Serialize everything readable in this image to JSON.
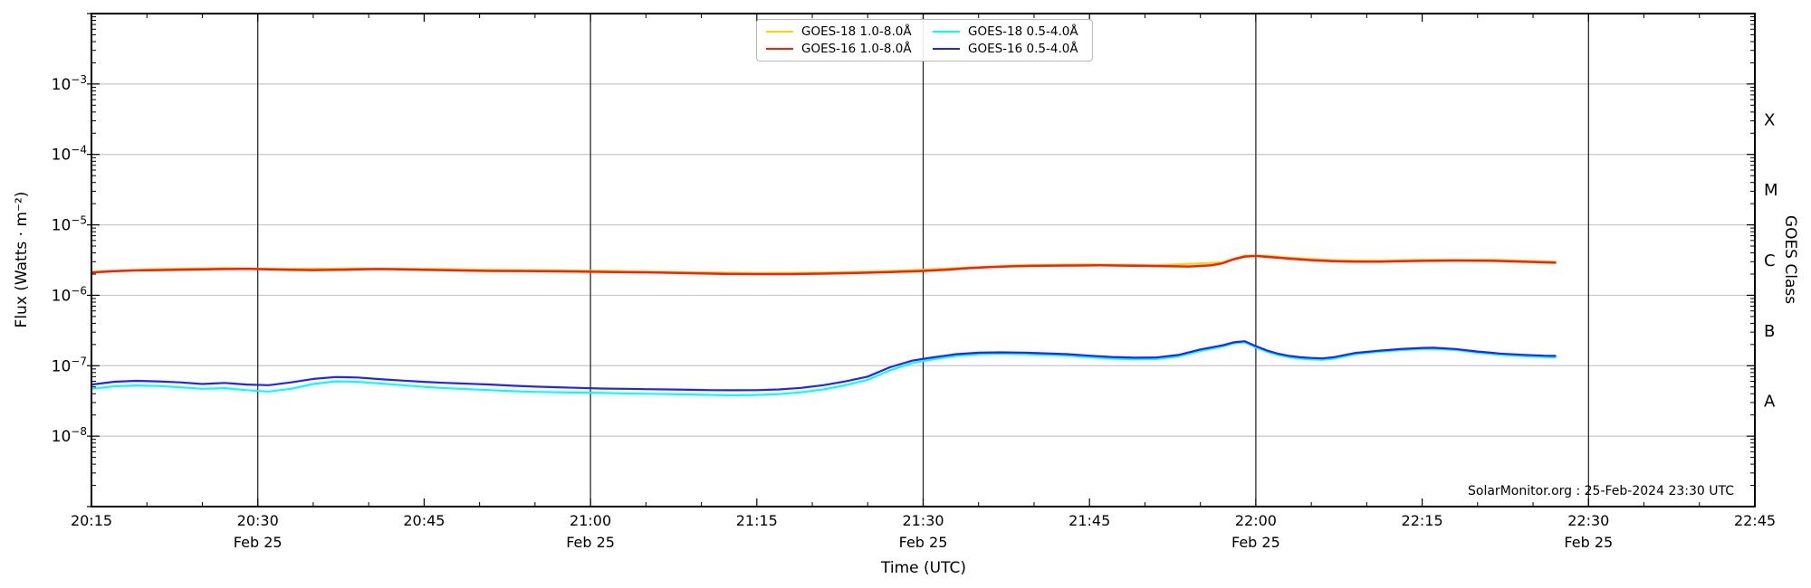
{
  "watermark": "SolarMonitor.org : 25-Feb-2024 23:30 UTC",
  "axes": {
    "x_title": "Time (UTC)",
    "y_title": "Flux (Watts · m⁻²)",
    "y2_title": "GOES Class"
  },
  "colors": {
    "gridline": "#c9c9c9",
    "vline": "#1a1a1a",
    "spine": "#000000",
    "text": "#000000"
  },
  "chart_data": {
    "type": "line",
    "title": "",
    "x_axis": {
      "total_minutes": 150,
      "start_label": "20:15",
      "end_label": "22:45",
      "tick_interval_min": 15,
      "minor_tick_min": 5,
      "tick_labels": [
        "20:15",
        "20:30",
        "20:45",
        "21:00",
        "21:15",
        "21:30",
        "21:45",
        "22:00",
        "22:15",
        "22:30",
        "22:45"
      ],
      "date_label": "Feb 25",
      "date_tick_minutes": [
        15,
        45,
        75,
        105,
        135
      ]
    },
    "y_axis": {
      "scale": "log",
      "max_exp": -2,
      "min_exp": -9,
      "labeled_exps": [
        -3,
        -4,
        -5,
        -6,
        -7,
        -8
      ],
      "grid": true
    },
    "goes_classes": [
      {
        "label": "X",
        "center_exp": -3.5
      },
      {
        "label": "M",
        "center_exp": -4.5
      },
      {
        "label": "C",
        "center_exp": -5.5
      },
      {
        "label": "B",
        "center_exp": -6.5
      },
      {
        "label": "A",
        "center_exp": -7.5
      }
    ],
    "legend_order": [
      0,
      2,
      1,
      3
    ],
    "series": [
      {
        "id": "goes18-long",
        "name": "GOES-18 1.0-8.0Å",
        "color": "#FFD400",
        "width": 2.0,
        "flux_scale": 1e-06,
        "points": [
          [
            0,
            2.16
          ],
          [
            6,
            2.35
          ],
          [
            12,
            2.43
          ],
          [
            18,
            2.37
          ],
          [
            24,
            2.4
          ],
          [
            30,
            2.37
          ],
          [
            36,
            2.29
          ],
          [
            42,
            2.26
          ],
          [
            48,
            2.19
          ],
          [
            54,
            2.12
          ],
          [
            60,
            2.06
          ],
          [
            66,
            2.09
          ],
          [
            72,
            2.2
          ],
          [
            78,
            2.43
          ],
          [
            84,
            2.68
          ],
          [
            90,
            2.74
          ],
          [
            96,
            2.67
          ],
          [
            102,
            2.94
          ],
          [
            104,
            3.66
          ],
          [
            106,
            3.63
          ],
          [
            108,
            3.42
          ],
          [
            112,
            3.14
          ],
          [
            116,
            3.09
          ],
          [
            120,
            3.17
          ],
          [
            126,
            3.19
          ],
          [
            132,
            2.99
          ]
        ]
      },
      {
        "id": "goes16-long",
        "name": "GOES-16 1.0-8.0Å",
        "color": "#FF1E00",
        "width": 2.5,
        "flux_scale": 1e-06,
        "points": [
          [
            0,
            2.1
          ],
          [
            2,
            2.2
          ],
          [
            4,
            2.26
          ],
          [
            6,
            2.28
          ],
          [
            8,
            2.31
          ],
          [
            10,
            2.33
          ],
          [
            12,
            2.36
          ],
          [
            14,
            2.38
          ],
          [
            16,
            2.34
          ],
          [
            18,
            2.3
          ],
          [
            20,
            2.28
          ],
          [
            22,
            2.3
          ],
          [
            24,
            2.33
          ],
          [
            26,
            2.36
          ],
          [
            28,
            2.34
          ],
          [
            30,
            2.3
          ],
          [
            33,
            2.26
          ],
          [
            36,
            2.22
          ],
          [
            39,
            2.21
          ],
          [
            42,
            2.19
          ],
          [
            45,
            2.16
          ],
          [
            48,
            2.13
          ],
          [
            51,
            2.1
          ],
          [
            54,
            2.06
          ],
          [
            57,
            2.02
          ],
          [
            60,
            2.0
          ],
          [
            63,
            2.0
          ],
          [
            66,
            2.03
          ],
          [
            69,
            2.07
          ],
          [
            72,
            2.14
          ],
          [
            75,
            2.22
          ],
          [
            77,
            2.3
          ],
          [
            79,
            2.42
          ],
          [
            81,
            2.52
          ],
          [
            83,
            2.58
          ],
          [
            85,
            2.62
          ],
          [
            87,
            2.64
          ],
          [
            89,
            2.65
          ],
          [
            91,
            2.66
          ],
          [
            93,
            2.64
          ],
          [
            95,
            2.62
          ],
          [
            97,
            2.59
          ],
          [
            99,
            2.56
          ],
          [
            101,
            2.66
          ],
          [
            102,
            2.85
          ],
          [
            103,
            3.25
          ],
          [
            104,
            3.55
          ],
          [
            105,
            3.62
          ],
          [
            106,
            3.52
          ],
          [
            107,
            3.42
          ],
          [
            108,
            3.32
          ],
          [
            110,
            3.15
          ],
          [
            112,
            3.05
          ],
          [
            114,
            3.0
          ],
          [
            116,
            3.0
          ],
          [
            118,
            3.04
          ],
          [
            120,
            3.08
          ],
          [
            123,
            3.12
          ],
          [
            126,
            3.1
          ],
          [
            129,
            3.0
          ],
          [
            132,
            2.9
          ]
        ]
      },
      {
        "id": "goes18-short",
        "name": "GOES-18 0.5-4.0Å",
        "color": "#00FFFF",
        "width": 2.2,
        "flux_scale": 1e-08,
        "points": [
          [
            0,
            4.7
          ],
          [
            2,
            5.1
          ],
          [
            4,
            5.25
          ],
          [
            6,
            5.15
          ],
          [
            8,
            4.95
          ],
          [
            10,
            4.7
          ],
          [
            12,
            4.8
          ],
          [
            14,
            4.5
          ],
          [
            16,
            4.3
          ],
          [
            18,
            4.7
          ],
          [
            20,
            5.5
          ],
          [
            22,
            6.0
          ],
          [
            24,
            5.9
          ],
          [
            26,
            5.6
          ],
          [
            28,
            5.3
          ],
          [
            30,
            5.0
          ],
          [
            32,
            4.8
          ],
          [
            34,
            4.65
          ],
          [
            36,
            4.5
          ],
          [
            38,
            4.35
          ],
          [
            40,
            4.25
          ],
          [
            42,
            4.2
          ],
          [
            44,
            4.15
          ],
          [
            46,
            4.1
          ],
          [
            48,
            4.05
          ],
          [
            50,
            4.0
          ],
          [
            52,
            3.95
          ],
          [
            54,
            3.9
          ],
          [
            56,
            3.85
          ],
          [
            58,
            3.8
          ],
          [
            60,
            3.85
          ],
          [
            62,
            3.95
          ],
          [
            64,
            4.2
          ],
          [
            66,
            4.6
          ],
          [
            68,
            5.3
          ],
          [
            70,
            6.3
          ],
          [
            72,
            8.6
          ],
          [
            74,
            10.9
          ],
          [
            75,
            11.7
          ],
          [
            76,
            12.4
          ],
          [
            77,
            13.1
          ],
          [
            78,
            13.8
          ],
          [
            80,
            14.5
          ],
          [
            82,
            14.8
          ],
          [
            84,
            14.6
          ],
          [
            86,
            14.3
          ],
          [
            88,
            13.9
          ],
          [
            90,
            13.2
          ],
          [
            92,
            12.6
          ],
          [
            94,
            12.3
          ],
          [
            96,
            12.4
          ],
          [
            98,
            13.5
          ],
          [
            100,
            16.2
          ],
          [
            102,
            18.7
          ],
          [
            103,
            20.7
          ],
          [
            104,
            21.5
          ],
          [
            105,
            18.2
          ],
          [
            106,
            15.8
          ],
          [
            107,
            14.2
          ],
          [
            108,
            13.2
          ],
          [
            109,
            12.6
          ],
          [
            110,
            12.3
          ],
          [
            111,
            12.1
          ],
          [
            112,
            12.6
          ],
          [
            114,
            14.6
          ],
          [
            116,
            15.7
          ],
          [
            118,
            16.6
          ],
          [
            120,
            17.3
          ],
          [
            121,
            17.4
          ],
          [
            123,
            16.7
          ],
          [
            125,
            15.3
          ],
          [
            127,
            14.3
          ],
          [
            129,
            13.7
          ],
          [
            131,
            13.3
          ],
          [
            132,
            13.1
          ]
        ]
      },
      {
        "id": "goes16-short",
        "name": "GOES-16 0.5-4.0Å",
        "color": "#2222FF",
        "width": 2.2,
        "flux_scale": 1e-08,
        "points": [
          [
            0,
            5.4
          ],
          [
            2,
            5.9
          ],
          [
            4,
            6.1
          ],
          [
            6,
            6.0
          ],
          [
            8,
            5.8
          ],
          [
            10,
            5.5
          ],
          [
            12,
            5.7
          ],
          [
            14,
            5.4
          ],
          [
            16,
            5.3
          ],
          [
            18,
            5.8
          ],
          [
            20,
            6.5
          ],
          [
            22,
            6.9
          ],
          [
            24,
            6.8
          ],
          [
            26,
            6.45
          ],
          [
            28,
            6.15
          ],
          [
            30,
            5.9
          ],
          [
            32,
            5.7
          ],
          [
            34,
            5.55
          ],
          [
            36,
            5.4
          ],
          [
            38,
            5.2
          ],
          [
            40,
            5.05
          ],
          [
            42,
            4.95
          ],
          [
            44,
            4.85
          ],
          [
            46,
            4.75
          ],
          [
            48,
            4.7
          ],
          [
            50,
            4.65
          ],
          [
            52,
            4.6
          ],
          [
            54,
            4.55
          ],
          [
            56,
            4.5
          ],
          [
            58,
            4.48
          ],
          [
            60,
            4.5
          ],
          [
            62,
            4.6
          ],
          [
            64,
            4.85
          ],
          [
            66,
            5.3
          ],
          [
            68,
            6.0
          ],
          [
            70,
            7.0
          ],
          [
            72,
            9.5
          ],
          [
            74,
            11.8
          ],
          [
            75,
            12.5
          ],
          [
            76,
            13.2
          ],
          [
            77,
            13.9
          ],
          [
            78,
            14.6
          ],
          [
            80,
            15.3
          ],
          [
            82,
            15.5
          ],
          [
            84,
            15.35
          ],
          [
            86,
            15.0
          ],
          [
            88,
            14.6
          ],
          [
            90,
            13.9
          ],
          [
            92,
            13.3
          ],
          [
            94,
            13.0
          ],
          [
            96,
            13.1
          ],
          [
            98,
            14.2
          ],
          [
            100,
            17.0
          ],
          [
            102,
            19.5
          ],
          [
            103,
            21.5
          ],
          [
            104,
            22.3
          ],
          [
            105,
            19.0
          ],
          [
            106,
            16.5
          ],
          [
            107,
            14.8
          ],
          [
            108,
            13.8
          ],
          [
            109,
            13.2
          ],
          [
            110,
            12.9
          ],
          [
            111,
            12.7
          ],
          [
            112,
            13.2
          ],
          [
            114,
            15.2
          ],
          [
            116,
            16.3
          ],
          [
            118,
            17.2
          ],
          [
            120,
            17.9
          ],
          [
            121,
            18.0
          ],
          [
            123,
            17.3
          ],
          [
            125,
            15.9
          ],
          [
            127,
            14.9
          ],
          [
            129,
            14.3
          ],
          [
            131,
            13.9
          ],
          [
            132,
            13.8
          ]
        ]
      }
    ]
  }
}
